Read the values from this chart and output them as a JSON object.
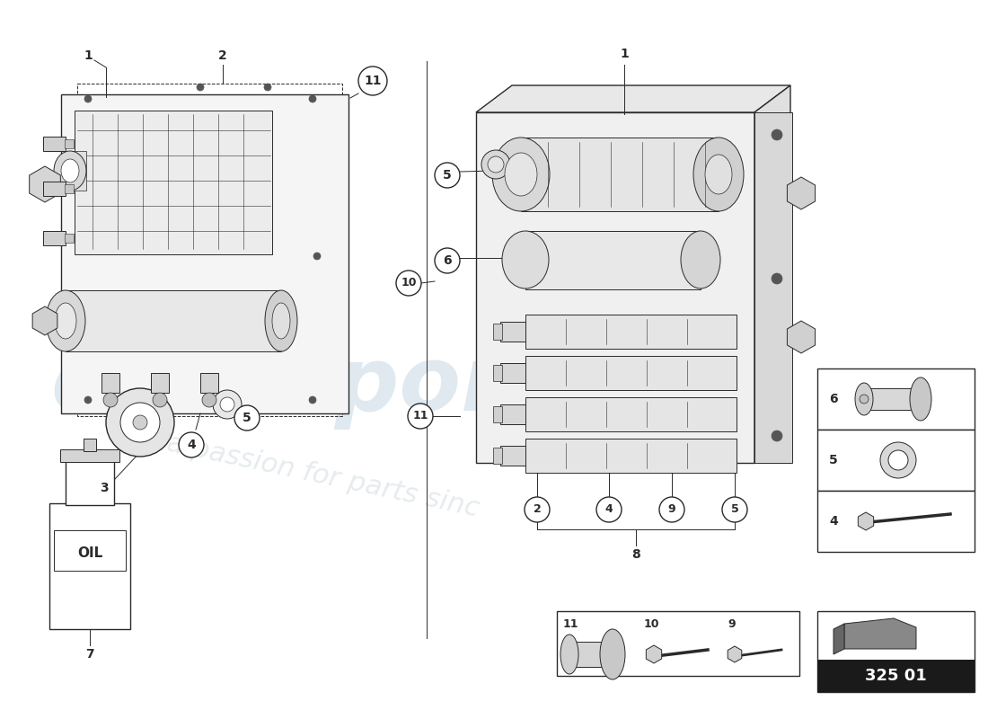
{
  "bg_color": "#ffffff",
  "line_color": "#2a2a2a",
  "watermark_color1": "#b0c8d8",
  "watermark_color2": "#b8c8d0",
  "part_code": "325 01",
  "oil_label": "OIL",
  "figsize": [
    11.0,
    8.0
  ],
  "dpi": 100
}
